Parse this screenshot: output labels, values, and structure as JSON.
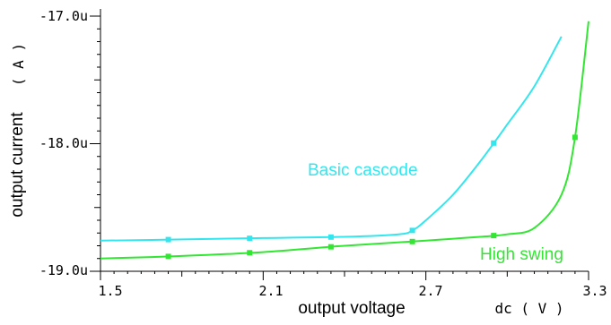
{
  "chart_data": {
    "type": "line",
    "title": "",
    "xlabel": "output voltage",
    "xunit_label": "dc ( V )",
    "ylabel": "output current",
    "yunit_label": "( A )",
    "xlim": [
      1.5,
      3.3
    ],
    "ylim": [
      -19.0,
      -17.0
    ],
    "y_unit": "u",
    "x_ticks": [
      "1.5",
      "2.1",
      "2.7",
      "3.3"
    ],
    "y_ticks": [
      "-17.0u",
      "-18.0u",
      "-19.0u"
    ],
    "grid": false,
    "series": [
      {
        "name": "Basic cascode",
        "color": "#33e6ee",
        "x": [
          1.5,
          1.8,
          2.1,
          2.4,
          2.6,
          2.65,
          2.7,
          2.8,
          2.9,
          3.0,
          3.1,
          3.2
        ],
        "y": [
          -18.76,
          -18.75,
          -18.74,
          -18.73,
          -18.71,
          -18.68,
          -18.6,
          -18.4,
          -18.14,
          -17.85,
          -17.55,
          -17.16
        ],
        "marker_x": [
          1.75,
          2.05,
          2.35,
          2.65,
          2.95
        ]
      },
      {
        "name": "High swing",
        "color": "#33e633",
        "x": [
          1.5,
          1.8,
          2.1,
          2.4,
          2.7,
          2.9,
          3.0,
          3.1,
          3.2,
          3.25,
          3.3
        ],
        "y": [
          -18.9,
          -18.88,
          -18.85,
          -18.8,
          -18.76,
          -18.73,
          -18.71,
          -18.66,
          -18.4,
          -17.95,
          -17.04
        ],
        "marker_x": [
          1.75,
          2.05,
          2.35,
          2.65,
          2.95,
          3.25
        ]
      }
    ],
    "annotations": [
      "Basic cascode",
      "High swing"
    ]
  }
}
